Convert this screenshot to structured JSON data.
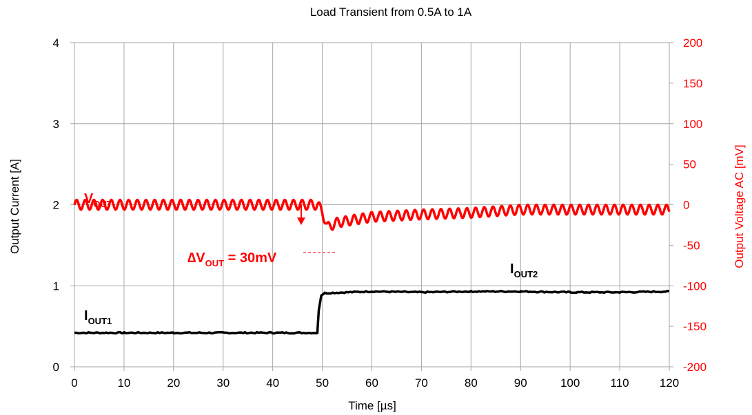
{
  "colors": {
    "current": "#000000",
    "voltage": "#ff0000",
    "grid": "#a6a6a6"
  },
  "chart_data": {
    "type": "line",
    "title": "Load Transient from 0.5A to 1A",
    "xlabel": "Time [µs]",
    "ylabel_left": "Output Current  [A]",
    "ylabel_right": "Output Voltage AC  [mV]",
    "xlim": [
      0,
      120
    ],
    "ylim_left": [
      0,
      4
    ],
    "ylim_right": [
      -200,
      200
    ],
    "x_ticks": [
      "0",
      "10",
      "20",
      "30",
      "40",
      "50",
      "60",
      "70",
      "80",
      "90",
      "100",
      "110",
      "120"
    ],
    "y_left_ticks": [
      "0",
      "1",
      "2",
      "3",
      "4"
    ],
    "y_right_ticks": [
      "-200",
      "-150",
      "-100",
      "-50",
      "0",
      "50",
      "100",
      "150",
      "200"
    ],
    "grid": true,
    "series": [
      {
        "name": "IOUT",
        "axis": "left",
        "points": [
          [
            0,
            0.42
          ],
          [
            10,
            0.42
          ],
          [
            20,
            0.42
          ],
          [
            30,
            0.42
          ],
          [
            40,
            0.42
          ],
          [
            49,
            0.42
          ],
          [
            49.3,
            0.7
          ],
          [
            49.8,
            0.88
          ],
          [
            50.5,
            0.91
          ],
          [
            60,
            0.93
          ],
          [
            70,
            0.92
          ],
          [
            80,
            0.93
          ],
          [
            90,
            0.93
          ],
          [
            100,
            0.92
          ],
          [
            110,
            0.92
          ],
          [
            120,
            0.93
          ]
        ]
      },
      {
        "name": "VOUT",
        "axis": "right",
        "description_ripple": "switching ripple",
        "ripple_period_us": 1.75,
        "ripple_amplitude_mv": 6,
        "envelope": [
          [
            0,
            0
          ],
          [
            49,
            0
          ],
          [
            50,
            -8
          ],
          [
            51,
            -28
          ],
          [
            53,
            -22
          ],
          [
            55,
            -20
          ],
          [
            60,
            -15
          ],
          [
            70,
            -12
          ],
          [
            80,
            -10
          ],
          [
            90,
            -6
          ],
          [
            100,
            -6
          ],
          [
            110,
            -6
          ],
          [
            120,
            -6
          ]
        ]
      }
    ],
    "annotations": {
      "vout_label": "V",
      "vout_sub": "OUT",
      "iout1_label": "I",
      "iout1_sub": "OUT1",
      "iout2_label": "I",
      "iout2_sub": "OUT2",
      "delta_prefix": "∆V",
      "delta_sub": "OUT",
      "delta_suffix": " = 30mV"
    }
  }
}
